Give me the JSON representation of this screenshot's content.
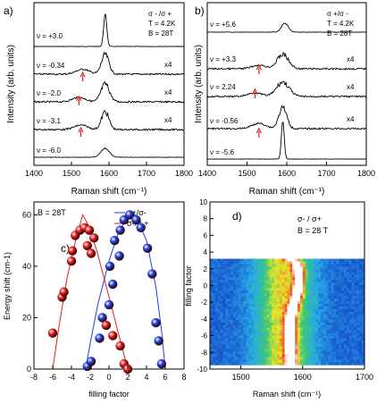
{
  "chart_data": [
    {
      "panel": "a)",
      "type": "line",
      "title": "",
      "legend": [
        "σ - /σ +",
        "T = 4.2K",
        "B = 28T"
      ],
      "xlabel": "Raman shift (cm⁻¹)",
      "ylabel": "Intensity (arb. units)",
      "xlim": [
        1400,
        1800
      ],
      "xticks": [
        1400,
        1500,
        1600,
        1700,
        1800
      ],
      "series": [
        {
          "name": "ν = +3.0",
          "peak_x": 1590,
          "marker_x": null,
          "scale": ""
        },
        {
          "name": "ν = -0.34",
          "peak_x": 1590,
          "marker_x": 1530,
          "scale": "x4"
        },
        {
          "name": "ν = -2.0",
          "peak_x": 1590,
          "marker_x": 1520,
          "scale": "x4"
        },
        {
          "name": "ν = -3.1",
          "peak_x": 1590,
          "marker_x": 1525,
          "scale": "x4"
        },
        {
          "name": "ν = -6.0",
          "peak_x": 1590,
          "marker_x": null,
          "scale": ""
        }
      ]
    },
    {
      "panel": "b)",
      "type": "line",
      "title": "",
      "legend": [
        "σ +/σ -",
        "T = 4.2K",
        "B = 28T"
      ],
      "xlabel": "Raman shift (cm⁻¹)",
      "ylabel": "Intensity (arb. units)",
      "xlim": [
        1400,
        1800
      ],
      "xticks": [
        1400,
        1500,
        1600,
        1700,
        1800
      ],
      "series": [
        {
          "name": "ν = +5.6",
          "peak_x": 1595,
          "marker_x": null,
          "scale": ""
        },
        {
          "name": "ν = +3.3",
          "peak_x": 1590,
          "marker_x": 1530,
          "scale": "x4"
        },
        {
          "name": "ν = 2.24",
          "peak_x": 1590,
          "marker_x": 1520,
          "scale": "x4"
        },
        {
          "name": "ν = -0.56",
          "peak_x": 1590,
          "marker_x": 1530,
          "scale": "x4"
        },
        {
          "name": "ν = -5.6",
          "peak_x": 1590,
          "marker_x": null,
          "scale": ""
        }
      ]
    },
    {
      "panel": "c)",
      "type": "scatter",
      "annotation": "B = 28T",
      "xlabel": "filling factor",
      "ylabel": "Energy shift (cm-1)",
      "xlim": [
        -8,
        8
      ],
      "ylim": [
        0,
        65
      ],
      "xticks": [
        -8,
        -6,
        -4,
        -2,
        0,
        2,
        4,
        6,
        8
      ],
      "yticks": [
        0,
        20,
        40,
        60
      ],
      "series": [
        {
          "name": "σ+/σ-",
          "color": "#1f3fe0",
          "points": [
            [
              -2.3,
              1
            ],
            [
              -1.9,
              3
            ],
            [
              -1.0,
              12
            ],
            [
              -0.7,
              20
            ],
            [
              0.0,
              25
            ],
            [
              0.4,
              33
            ],
            [
              0.1,
              40
            ],
            [
              1.1,
              44
            ],
            [
              0.6,
              50
            ],
            [
              1.2,
              54
            ],
            [
              1.6,
              58
            ],
            [
              2.2,
              60
            ],
            [
              2.9,
              58
            ],
            [
              3.4,
              55
            ],
            [
              4.1,
              47
            ],
            [
              4.6,
              37
            ],
            [
              5.0,
              18
            ],
            [
              5.3,
              11
            ],
            [
              5.6,
              2
            ]
          ]
        },
        {
          "name": "σ-/σ +",
          "color": "#e01f1f",
          "points": [
            [
              -6.0,
              14
            ],
            [
              -5.0,
              28
            ],
            [
              -4.8,
              30
            ],
            [
              -4.0,
              42
            ],
            [
              -3.9,
              46
            ],
            [
              -3.6,
              52
            ],
            [
              -3.1,
              54
            ],
            [
              -2.6,
              55
            ],
            [
              -2.1,
              54
            ],
            [
              -1.6,
              51
            ],
            [
              -2.3,
              48
            ],
            [
              -1.9,
              45
            ],
            [
              -0.3,
              17
            ],
            [
              0.4,
              13
            ],
            [
              1.2,
              9
            ],
            [
              1.6,
              2
            ],
            [
              2.0,
              0
            ]
          ]
        }
      ],
      "fit_lines": [
        {
          "name": "σ+/σ- fit",
          "color": "#1f3fe0",
          "points": [
            [
              -2.5,
              0
            ],
            [
              -2.0,
              10
            ],
            [
              -1.2,
              25
            ],
            [
              0,
              42
            ],
            [
              1.0,
              53
            ],
            [
              2.0,
              59
            ],
            [
              2.8,
              60
            ],
            [
              4.0,
              50
            ],
            [
              5.0,
              32
            ],
            [
              5.6,
              15
            ],
            [
              6.0,
              0
            ]
          ]
        },
        {
          "name": "σ-/σ + fit",
          "color": "#e01f1f",
          "points": [
            [
              -6.0,
              0
            ],
            [
              -5.4,
              15
            ],
            [
              -4.5,
              35
            ],
            [
              -3.5,
              51
            ],
            [
              -2.8,
              60
            ],
            [
              -2.2,
              56
            ],
            [
              -1.3,
              46
            ],
            [
              0,
              28
            ],
            [
              1.0,
              14
            ],
            [
              2.0,
              0
            ]
          ]
        }
      ]
    },
    {
      "panel": "d)",
      "type": "heatmap",
      "legend": [
        "σ- / σ+",
        "B = 28 T"
      ],
      "xlabel": "Raman shift (cm⁻¹)",
      "ylabel": "filling factor",
      "xlim": [
        1450,
        1700
      ],
      "ylim": [
        -10,
        10
      ],
      "xticks": [
        1500,
        1600,
        1700
      ],
      "yticks": [
        -10,
        -8,
        -6,
        -4,
        -2,
        0,
        2,
        4,
        6,
        8,
        10
      ],
      "data_ylim": [
        -9.5,
        3.2
      ],
      "ridge": [
        [
          3.0,
          1590
        ],
        [
          1.0,
          1595
        ],
        [
          -1.0,
          1592
        ],
        [
          -2.5,
          1585
        ],
        [
          -4.0,
          1580
        ],
        [
          -6.0,
          1580
        ],
        [
          -9.5,
          1582
        ]
      ]
    }
  ]
}
